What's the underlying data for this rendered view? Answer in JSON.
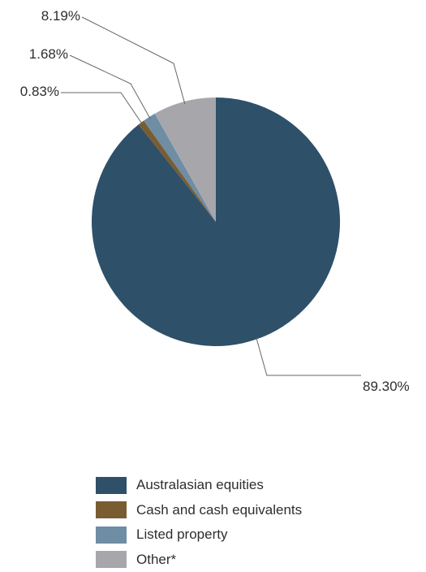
{
  "chart_data": {
    "type": "pie",
    "slices": [
      {
        "name": "Australasian equities",
        "value": 89.3,
        "label": "89.30%",
        "color": "#2e5069"
      },
      {
        "name": "Cash and cash equivalents",
        "value": 0.83,
        "label": "0.83%",
        "color": "#7a5c32"
      },
      {
        "name": "Listed property",
        "value": 1.68,
        "label": "1.68%",
        "color": "#6f8da3"
      },
      {
        "name": "Other*",
        "value": 8.19,
        "label": "8.19%",
        "color": "#a7a7ab"
      }
    ],
    "start_angle": "12 o'clock",
    "direction": "clockwise",
    "legend_position": "bottom-left",
    "title": ""
  },
  "legend": {
    "items": [
      {
        "label": "Australasian equities",
        "color": "#2e5069"
      },
      {
        "label": "Cash and cash equivalents",
        "color": "#7a5c32"
      },
      {
        "label": "Listed property",
        "color": "#6f8da3"
      },
      {
        "label": "Other*",
        "color": "#a7a7ab"
      }
    ]
  }
}
